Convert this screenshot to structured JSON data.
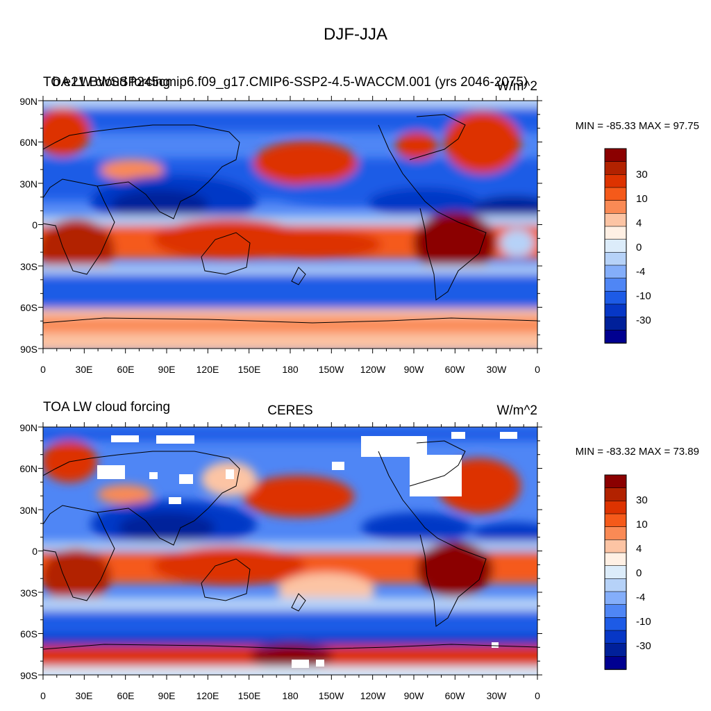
{
  "figure_title": "DJF-JJA",
  "chart_data": [
    {
      "type": "heatmap",
      "title_left": "TOA LW cloud forcing",
      "title_center": "b.e21.BWSSP245cmip6.f09_g17.CMIP6-SSP2-4.5-WACCM.001 (yrs 2046-2075)",
      "title_right": "W/m^2",
      "stats_label": "MIN = -85.33 MAX =  97.75",
      "min": -85.33,
      "max": 97.75,
      "lat_ticks": [
        "90N",
        "60N",
        "30N",
        "0",
        "30S",
        "60S",
        "90S"
      ],
      "lon_ticks": [
        "0",
        "30E",
        "60E",
        "90E",
        "120E",
        "150E",
        "180",
        "150W",
        "120W",
        "90W",
        "60W",
        "30W",
        "0"
      ],
      "colorbar_labels": [
        "30",
        "10",
        "4",
        "0",
        "-4",
        "-10",
        "-30"
      ],
      "missing_data": false
    },
    {
      "type": "heatmap",
      "title_left": "TOA LW cloud forcing",
      "title_center": "CERES",
      "title_right": "W/m^2",
      "stats_label": "MIN = -83.32 MAX =  73.89",
      "min": -83.32,
      "max": 73.89,
      "lat_ticks": [
        "90N",
        "60N",
        "30N",
        "0",
        "30S",
        "60S",
        "90S"
      ],
      "lon_ticks": [
        "0",
        "30E",
        "60E",
        "90E",
        "120E",
        "150E",
        "180",
        "150W",
        "120W",
        "90W",
        "60W",
        "30W",
        "0"
      ],
      "colorbar_labels": [
        "30",
        "10",
        "4",
        "0",
        "-4",
        "-10",
        "-30"
      ],
      "missing_data": true
    }
  ],
  "colorbar_colors": [
    "#8b0000",
    "#b22200",
    "#dd3300",
    "#f55a1a",
    "#fa8a55",
    "#fcc4a4",
    "#fff0e4",
    "#dcecfa",
    "#b6d2f8",
    "#84aefa",
    "#4f86f5",
    "#1d5be6",
    "#0637c6",
    "#00209a",
    "#000090"
  ]
}
